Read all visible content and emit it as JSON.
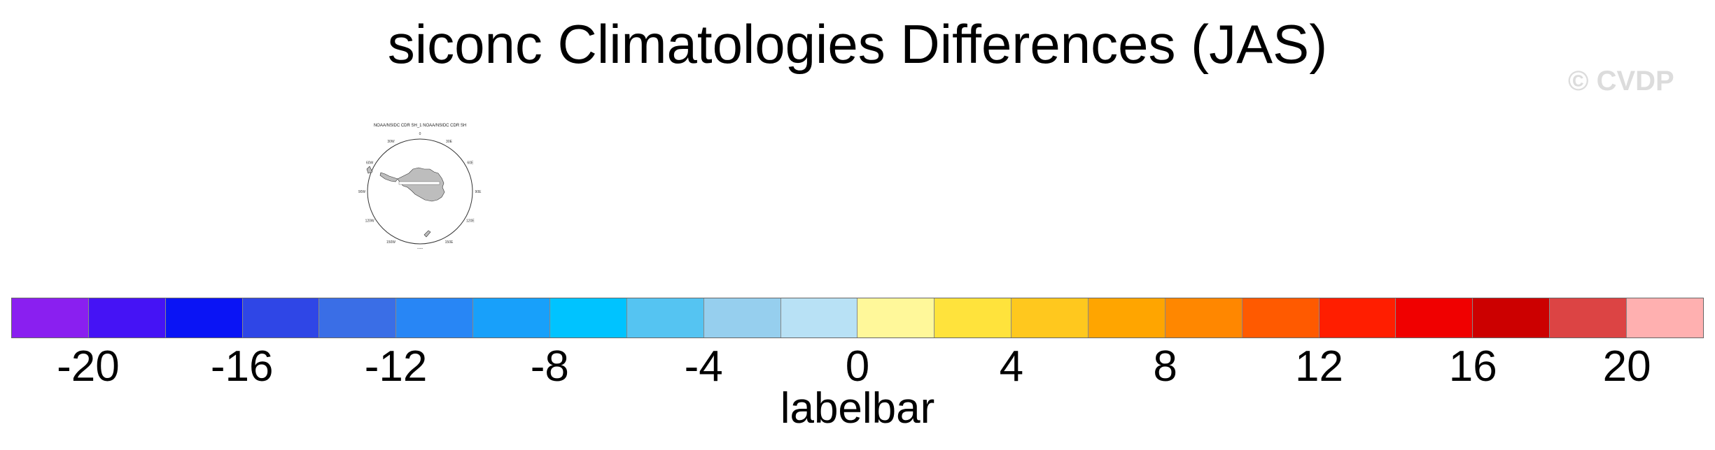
{
  "title": "siconc Climatologies Differences (JAS)",
  "watermark": "© CVDP",
  "panel": {
    "title": "NOAA/NSIDC CDR SH_1 NOAA/NSIDC CDR SH",
    "lon_labels": [
      "0",
      "30E",
      "60E",
      "90E",
      "120E",
      "150E",
      "180",
      "150W",
      "120W",
      "90W",
      "60W",
      "30W"
    ],
    "land_color": "#bdbdbd"
  },
  "labelbar": {
    "label": "labelbar",
    "colors": [
      "#8a1ff0",
      "#4513f5",
      "#0a14f5",
      "#2f46e6",
      "#3a6ee6",
      "#2886f5",
      "#18a0fa",
      "#00c3ff",
      "#55c4f2",
      "#96cfee",
      "#b8e1f5",
      "#fff89a",
      "#ffe33c",
      "#ffc81e",
      "#ffa500",
      "#ff8700",
      "#ff5a00",
      "#ff1e00",
      "#f00000",
      "#cc0000",
      "#dc4444",
      "#ffb0b0"
    ],
    "ticks": [
      "-20",
      "-16",
      "-12",
      "-8",
      "-4",
      "0",
      "4",
      "8",
      "12",
      "16",
      "20"
    ]
  }
}
